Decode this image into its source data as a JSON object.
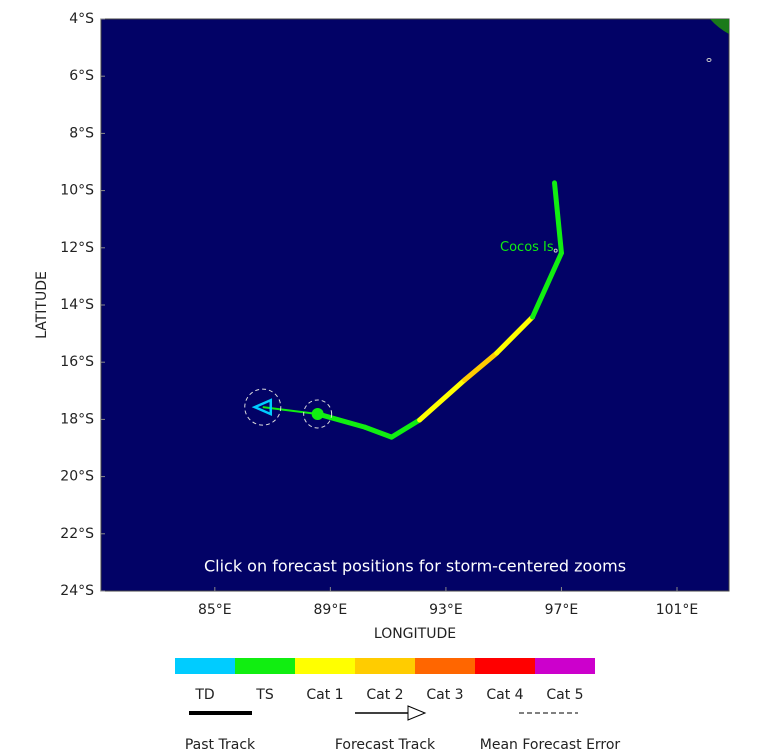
{
  "map": {
    "xlim": [
      81.06,
      102.8
    ],
    "ylim": [
      -24,
      -4
    ],
    "xticks": [
      {
        "value": 85,
        "label": "85°E"
      },
      {
        "value": 89,
        "label": "89°E"
      },
      {
        "value": 93,
        "label": "93°E"
      },
      {
        "value": 97,
        "label": "97°E"
      },
      {
        "value": 101,
        "label": "101°E"
      }
    ],
    "yticks": [
      {
        "value": -4,
        "label": "4°S"
      },
      {
        "value": -6,
        "label": "6°S"
      },
      {
        "value": -8,
        "label": "8°S"
      },
      {
        "value": -10,
        "label": "10°S"
      },
      {
        "value": -12,
        "label": "12°S"
      },
      {
        "value": -14,
        "label": "14°S"
      },
      {
        "value": -16,
        "label": "16°S"
      },
      {
        "value": -18,
        "label": "18°S"
      },
      {
        "value": -20,
        "label": "20°S"
      },
      {
        "value": -22,
        "label": "22°S"
      },
      {
        "value": -24,
        "label": "24°S"
      }
    ],
    "xlabel": "LONGITUDE",
    "ylabel": "LATITUDE",
    "annotation": "Click on forecast positions for storm-centered zooms",
    "place": {
      "label": "Cocos Is",
      "lon": 96.8,
      "lat": -12.1
    },
    "past_track": {
      "lon": [
        88.56,
        86.66
      ],
      "lat": [
        -17.81,
        -17.57
      ],
      "color": "#11ee11",
      "marker_color": "#00ccff"
    },
    "forecast_track": {
      "lon": [
        88.56,
        90.19,
        91.12,
        92.09,
        93.65,
        94.76,
        96.0,
        97.0,
        96.76
      ],
      "lat": [
        -17.81,
        -18.27,
        -18.62,
        -18.02,
        -16.62,
        -15.68,
        -14.42,
        -12.18,
        -9.73
      ],
      "colors": [
        "#11ee11",
        "#11ee11",
        "#11ee11",
        "#ffff00",
        "#ffcc00",
        "#ffff00",
        "#11ee11",
        "#11ee11"
      ]
    },
    "legend": {
      "categories": [
        {
          "label": "TD",
          "color": "#00ccff"
        },
        {
          "label": "TS",
          "color": "#11ee11"
        },
        {
          "label": "Cat 1",
          "color": "#ffff00"
        },
        {
          "label": "Cat 2",
          "color": "#ffcc00"
        },
        {
          "label": "Cat 3",
          "color": "#ff6600"
        },
        {
          "label": "Cat 4",
          "color": "#ff0000"
        },
        {
          "label": "Cat 5",
          "color": "#cc00cc"
        }
      ],
      "past": "Past Track",
      "forecast": "Forecast Track",
      "error": "Mean Forecast Error"
    }
  }
}
